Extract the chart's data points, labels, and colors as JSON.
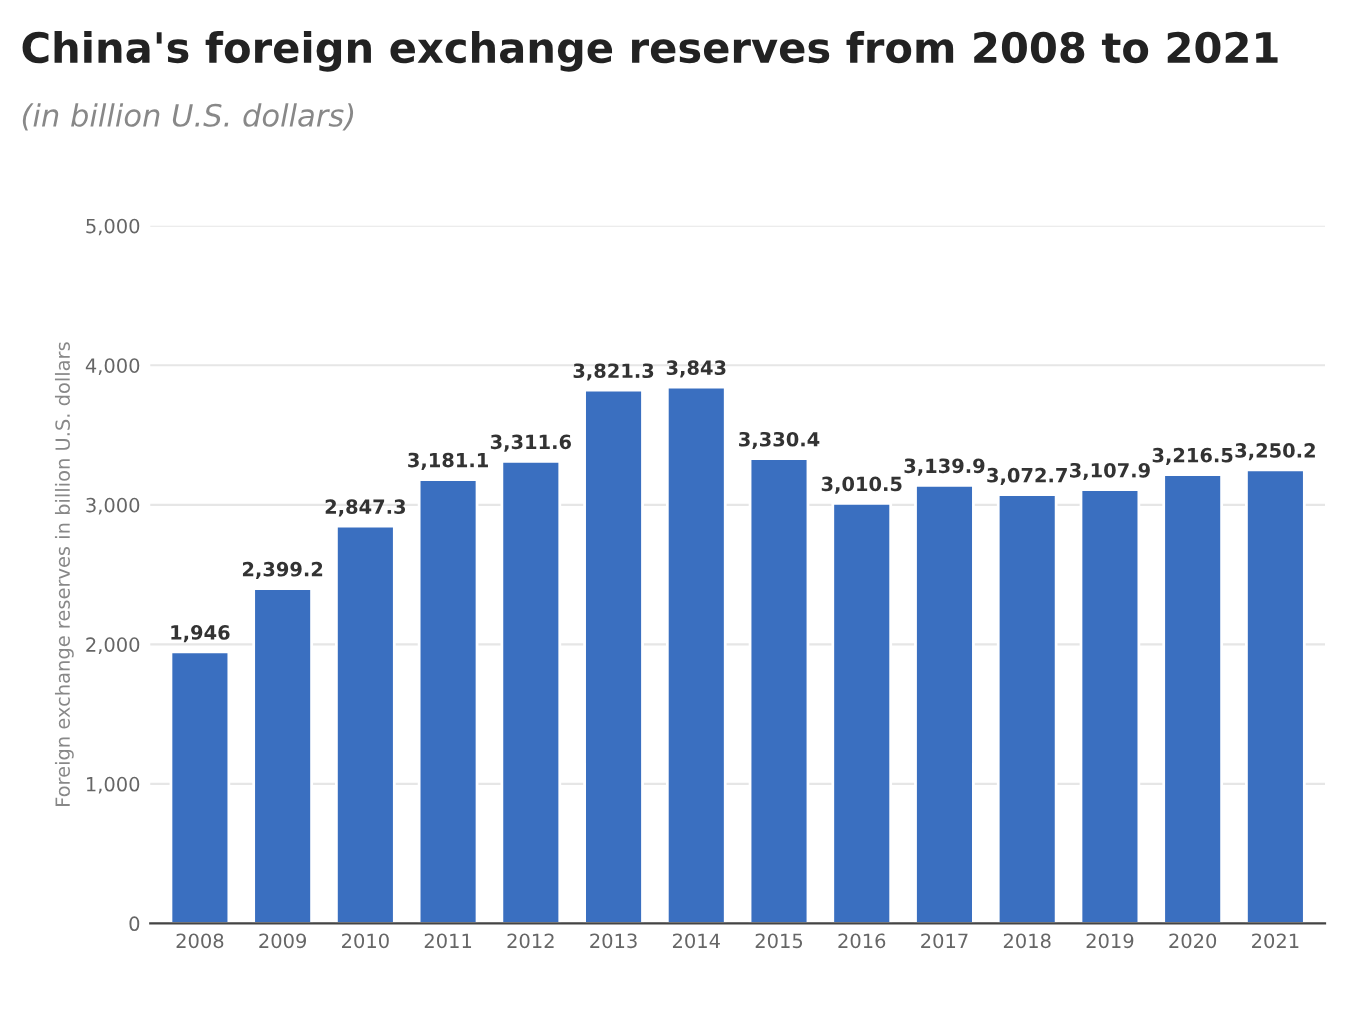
{
  "chart_data": {
    "type": "bar",
    "title": "China's foreign exchange reserves from 2008 to 2021",
    "subtitle": "(in billion U.S. dollars)",
    "ylabel": "Foreign exchange reserves in billion U.S. dollars",
    "categories": [
      "2008",
      "2009",
      "2010",
      "2011",
      "2012",
      "2013",
      "2014",
      "2015",
      "2016",
      "2017",
      "2018",
      "2019",
      "2020",
      "2021"
    ],
    "values": [
      1946,
      2399.2,
      2847.3,
      3181.1,
      3311.6,
      3821.3,
      3843,
      3330.4,
      3010.5,
      3139.9,
      3072.7,
      3107.9,
      3216.5,
      3250.2
    ],
    "value_labels": [
      "1,946",
      "2,399.2",
      "2,847.3",
      "3,181.1",
      "3,311.6",
      "3,821.3",
      "3,843",
      "3,330.4",
      "3,010.5",
      "3,139.9",
      "3,072.7",
      "3,107.9",
      "3,216.5",
      "3,250.2"
    ],
    "color": "#3a6fc0",
    "ylim": [
      0,
      5000
    ],
    "yticks": [
      0,
      {
        "value": 1000,
        "label": "1,000"
      },
      {
        "value": 2000,
        "label": "2,000"
      },
      {
        "value": 3000,
        "label": "3,000"
      },
      {
        "value": 4000,
        "label": "4,000"
      },
      {
        "value": 5000,
        "label": "5,000"
      }
    ],
    "grid": "y"
  }
}
